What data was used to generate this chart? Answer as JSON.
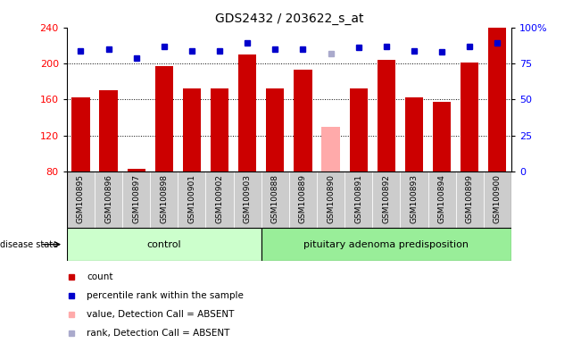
{
  "title": "GDS2432 / 203622_s_at",
  "samples": [
    "GSM100895",
    "GSM100896",
    "GSM100897",
    "GSM100898",
    "GSM100901",
    "GSM100902",
    "GSM100903",
    "GSM100888",
    "GSM100889",
    "GSM100890",
    "GSM100891",
    "GSM100892",
    "GSM100893",
    "GSM100894",
    "GSM100899",
    "GSM100900"
  ],
  "values": [
    162,
    170,
    83,
    197,
    172,
    172,
    210,
    172,
    193,
    130,
    172,
    204,
    162,
    157,
    201,
    240
  ],
  "absent_value_idx": [
    9
  ],
  "percentile_ranks": [
    84,
    85,
    79,
    87,
    84,
    84,
    89,
    85,
    85,
    82,
    86,
    87,
    84,
    83,
    87,
    89
  ],
  "absent_rank_idx": [
    9
  ],
  "n_control": 7,
  "n_disease": 9,
  "ylim_left": [
    80,
    240
  ],
  "ylim_right": [
    0,
    100
  ],
  "yticks_left": [
    80,
    120,
    160,
    200,
    240
  ],
  "yticks_right": [
    0,
    25,
    50,
    75,
    100
  ],
  "bar_color_normal": "#cc0000",
  "bar_color_absent": "#ffaaaa",
  "rank_color_normal": "#0000cc",
  "rank_color_absent": "#aaaacc",
  "control_bg": "#ccffcc",
  "disease_bg": "#99ee99",
  "xticklabel_bg": "#cccccc",
  "legend_items": [
    {
      "label": "count",
      "color": "#cc0000"
    },
    {
      "label": "percentile rank within the sample",
      "color": "#0000cc"
    },
    {
      "label": "value, Detection Call = ABSENT",
      "color": "#ffaaaa"
    },
    {
      "label": "rank, Detection Call = ABSENT",
      "color": "#aaaacc"
    }
  ],
  "disease_label": "pituitary adenoma predisposition",
  "control_label": "control",
  "disease_state_label": "disease state"
}
